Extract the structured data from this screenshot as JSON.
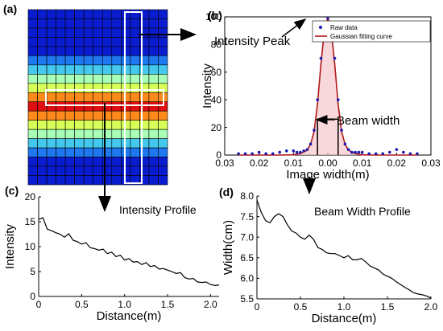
{
  "panels": {
    "a": "(a)",
    "b": "(b)",
    "c": "(c)",
    "d": "(d)"
  },
  "heatmap": {
    "rows": 19,
    "cols": 15,
    "row_colors": [
      "#0a1ccf",
      "#0a1ccf",
      "#0a1ccf",
      "#0a1ccf",
      "#0a1ccf",
      "#1e78f0",
      "#44c8ee",
      "#a8ffb8",
      "#d8ff58",
      "#ff8a1c",
      "#e01010",
      "#ff8a1c",
      "#d8ff58",
      "#a8ffb8",
      "#44c8ee",
      "#1e78f0",
      "#0a1ccf",
      "#0a1ccf",
      "#0a1ccf"
    ],
    "grid_color": "#000000",
    "highlight_color": "#ffffff"
  },
  "annotations": {
    "intensity_peak": "Intensity Peak",
    "beam_width": "Beam width"
  },
  "chart_data": [
    {
      "id": "b",
      "type": "line",
      "title": "",
      "xlabel": "Image width(m)",
      "ylabel": "Intensity",
      "xlim": [
        -0.03,
        0.03
      ],
      "ylim": [
        0,
        100
      ],
      "xticks": [
        "0.03",
        "0.02",
        "0.01",
        "0.00",
        "0.01",
        "0.02",
        "0.03"
      ],
      "yticks": [
        "0",
        "20",
        "40",
        "60",
        "80",
        "100"
      ],
      "legend": {
        "position": "top-right"
      },
      "series": [
        {
          "name": "Raw data",
          "style": "points",
          "color": "#1a1ab0",
          "x": [
            -0.026,
            -0.024,
            -0.022,
            -0.02,
            -0.018,
            -0.016,
            -0.014,
            -0.012,
            -0.01,
            -0.009,
            -0.008,
            -0.007,
            -0.006,
            -0.005,
            -0.004,
            -0.003,
            -0.002,
            -0.001,
            0.0,
            0.001,
            0.002,
            0.003,
            0.004,
            0.005,
            0.006,
            0.007,
            0.008,
            0.009,
            0.01,
            0.012,
            0.014,
            0.016,
            0.018,
            0.02,
            0.022,
            0.024,
            0.026
          ],
          "y": [
            1,
            1,
            1,
            2,
            1,
            1,
            2,
            3,
            3,
            2,
            2,
            3,
            4,
            8,
            18,
            40,
            70,
            90,
            99,
            90,
            70,
            40,
            18,
            8,
            4,
            2,
            2,
            2,
            2,
            1,
            1,
            1,
            2,
            4,
            2,
            1,
            1
          ]
        },
        {
          "name": "Gaussian fitting curve",
          "style": "line",
          "color": "#b01818",
          "x": [
            -0.026,
            -0.02,
            -0.014,
            -0.01,
            -0.008,
            -0.006,
            -0.005,
            -0.004,
            -0.003,
            -0.002,
            -0.001,
            0.0,
            0.001,
            0.002,
            0.003,
            0.004,
            0.005,
            0.006,
            0.008,
            0.01,
            0.014,
            0.02,
            0.026
          ],
          "y": [
            0,
            0,
            0,
            0.2,
            1,
            3.5,
            8,
            17,
            37,
            66,
            90,
            99,
            90,
            66,
            37,
            17,
            8,
            3.5,
            1,
            0.2,
            0,
            0,
            0
          ]
        }
      ]
    },
    {
      "id": "c",
      "type": "line",
      "title": "Intensity Profile",
      "xlabel": "Distance(m)",
      "ylabel": "Intensity",
      "xlim": [
        0,
        2.1
      ],
      "ylim": [
        0,
        20
      ],
      "xticks": [
        "0",
        "0.5",
        "1.0",
        "1.5",
        "2.0"
      ],
      "yticks": [
        "0",
        "5",
        "10",
        "15",
        "20"
      ],
      "series": [
        {
          "color": "#000000",
          "x": [
            0,
            0.05,
            0.1,
            0.15,
            0.2,
            0.25,
            0.3,
            0.35,
            0.4,
            0.45,
            0.5,
            0.55,
            0.6,
            0.65,
            0.7,
            0.75,
            0.8,
            0.85,
            0.9,
            0.95,
            1.0,
            1.05,
            1.1,
            1.15,
            1.2,
            1.25,
            1.3,
            1.35,
            1.4,
            1.45,
            1.5,
            1.55,
            1.6,
            1.65,
            1.7,
            1.75,
            1.8,
            1.85,
            1.9,
            1.95,
            2.0,
            2.05,
            2.1
          ],
          "y": [
            15.5,
            15.8,
            13.5,
            13.2,
            12.8,
            12.5,
            11.9,
            12.6,
            11.3,
            11.0,
            10.5,
            10.8,
            9.8,
            9.6,
            9.3,
            9.5,
            8.6,
            8.9,
            8.0,
            8.3,
            7.3,
            7.6,
            6.9,
            7.0,
            6.4,
            6.8,
            6.0,
            6.2,
            5.5,
            5.6,
            5.3,
            5.0,
            4.6,
            4.8,
            3.8,
            3.5,
            3.6,
            2.9,
            2.8,
            2.9,
            2.4,
            2.2,
            2.3
          ]
        }
      ]
    },
    {
      "id": "d",
      "type": "line",
      "title": "Beam Width Profile",
      "xlabel": "Distance(m)",
      "ylabel": "Width(cm)",
      "xlim": [
        0,
        2.0
      ],
      "ylim": [
        5.5,
        8.0
      ],
      "xticks": [
        "0",
        "0.5",
        "1.0",
        "1.5",
        "2.0"
      ],
      "yticks": [
        "5.5",
        "6.0",
        "6.5",
        "7.0",
        "7.5",
        "8.0"
      ],
      "series": [
        {
          "color": "#000000",
          "x": [
            0,
            0.05,
            0.1,
            0.15,
            0.2,
            0.25,
            0.3,
            0.35,
            0.4,
            0.45,
            0.5,
            0.55,
            0.6,
            0.65,
            0.7,
            0.75,
            0.8,
            0.85,
            0.9,
            0.95,
            1.0,
            1.05,
            1.1,
            1.15,
            1.2,
            1.25,
            1.3,
            1.35,
            1.4,
            1.45,
            1.5,
            1.55,
            1.6,
            1.65,
            1.7,
            1.75,
            1.8,
            1.85,
            1.9,
            1.95,
            2.0
          ],
          "y": [
            7.9,
            7.6,
            7.4,
            7.35,
            7.5,
            7.57,
            7.5,
            7.3,
            7.15,
            7.1,
            7.0,
            6.95,
            7.05,
            6.95,
            6.75,
            6.7,
            6.62,
            6.6,
            6.6,
            6.55,
            6.5,
            6.55,
            6.45,
            6.45,
            6.48,
            6.4,
            6.3,
            6.25,
            6.2,
            6.1,
            6.05,
            6.0,
            5.92,
            5.85,
            5.78,
            5.72,
            5.65,
            5.62,
            5.6,
            5.57,
            5.52
          ]
        }
      ]
    }
  ]
}
